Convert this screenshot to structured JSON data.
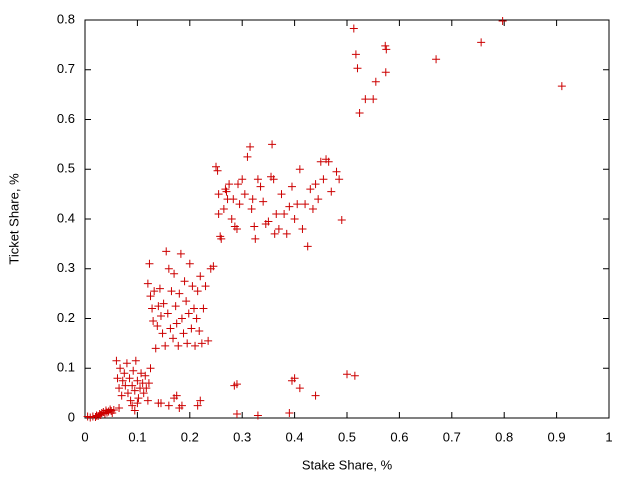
{
  "chart_data": {
    "type": "scatter",
    "xlabel": "Stake Share, %",
    "ylabel": "Ticket Share, %",
    "color": "#cc0000",
    "grid": false,
    "xlim": [
      0,
      1
    ],
    "xticks": [
      0,
      0.1,
      0.2,
      0.3,
      0.4,
      0.5,
      0.6,
      0.7,
      0.8,
      0.9,
      1
    ],
    "ylim": [
      0,
      0.8
    ],
    "yticks": [
      0,
      0.1,
      0.2,
      0.3,
      0.4,
      0.5,
      0.6,
      0.7,
      0.8
    ],
    "x": [
      0.513,
      0.517,
      0.52,
      0.524,
      0.535,
      0.55,
      0.555,
      0.573,
      0.575,
      0.574,
      0.67,
      0.756,
      0.797,
      0.91,
      0.25,
      0.253,
      0.255,
      0.255,
      0.258,
      0.26,
      0.265,
      0.268,
      0.27,
      0.272,
      0.275,
      0.28,
      0.283,
      0.286,
      0.29,
      0.292,
      0.295,
      0.3,
      0.305,
      0.31,
      0.315,
      0.318,
      0.32,
      0.323,
      0.325,
      0.33,
      0.335,
      0.34,
      0.345,
      0.35,
      0.355,
      0.357,
      0.36,
      0.362,
      0.365,
      0.37,
      0.375,
      0.38,
      0.385,
      0.39,
      0.395,
      0.4,
      0.405,
      0.41,
      0.415,
      0.42,
      0.425,
      0.43,
      0.435,
      0.44,
      0.445,
      0.45,
      0.455,
      0.46,
      0.465,
      0.47,
      0.48,
      0.485,
      0.49,
      0.12,
      0.123,
      0.125,
      0.128,
      0.13,
      0.132,
      0.135,
      0.138,
      0.14,
      0.143,
      0.145,
      0.148,
      0.15,
      0.153,
      0.155,
      0.158,
      0.16,
      0.163,
      0.165,
      0.168,
      0.17,
      0.173,
      0.175,
      0.178,
      0.18,
      0.183,
      0.185,
      0.188,
      0.19,
      0.193,
      0.195,
      0.198,
      0.2,
      0.203,
      0.205,
      0.208,
      0.21,
      0.213,
      0.215,
      0.218,
      0.22,
      0.223,
      0.226,
      0.23,
      0.235,
      0.24,
      0.245,
      0.06,
      0.062,
      0.065,
      0.067,
      0.07,
      0.072,
      0.075,
      0.077,
      0.08,
      0.082,
      0.085,
      0.087,
      0.09,
      0.092,
      0.095,
      0.097,
      0.1,
      0.102,
      0.105,
      0.107,
      0.11,
      0.112,
      0.115,
      0.117,
      0.12,
      0.122,
      0.125,
      0.09,
      0.095,
      0.1,
      0.065,
      0.015,
      0.02,
      0.022,
      0.025,
      0.028,
      0.03,
      0.032,
      0.035,
      0.038,
      0.04,
      0.042,
      0.045,
      0.048,
      0.05,
      0.052,
      0.055,
      0.01,
      0.005,
      0.14,
      0.145,
      0.16,
      0.17,
      0.175,
      0.18,
      0.185,
      0.215,
      0.22,
      0.285,
      0.29,
      0.29,
      0.33,
      0.39,
      0.395,
      0.4,
      0.41,
      0.44,
      0.5,
      0.515
    ],
    "values": [
      0.783,
      0.731,
      0.703,
      0.613,
      0.641,
      0.641,
      0.676,
      0.748,
      0.741,
      0.695,
      0.721,
      0.755,
      0.798,
      0.667,
      0.505,
      0.497,
      0.45,
      0.41,
      0.365,
      0.36,
      0.42,
      0.46,
      0.455,
      0.44,
      0.47,
      0.4,
      0.44,
      0.385,
      0.38,
      0.47,
      0.43,
      0.48,
      0.45,
      0.525,
      0.545,
      0.42,
      0.44,
      0.385,
      0.36,
      0.48,
      0.465,
      0.435,
      0.39,
      0.395,
      0.485,
      0.55,
      0.48,
      0.37,
      0.41,
      0.38,
      0.45,
      0.41,
      0.37,
      0.425,
      0.465,
      0.4,
      0.43,
      0.5,
      0.38,
      0.43,
      0.345,
      0.46,
      0.42,
      0.47,
      0.44,
      0.515,
      0.48,
      0.52,
      0.515,
      0.455,
      0.495,
      0.48,
      0.398,
      0.27,
      0.31,
      0.245,
      0.22,
      0.195,
      0.255,
      0.14,
      0.185,
      0.225,
      0.26,
      0.205,
      0.17,
      0.23,
      0.145,
      0.335,
      0.21,
      0.3,
      0.18,
      0.255,
      0.16,
      0.29,
      0.225,
      0.19,
      0.145,
      0.25,
      0.33,
      0.2,
      0.17,
      0.275,
      0.235,
      0.15,
      0.21,
      0.31,
      0.18,
      0.265,
      0.22,
      0.145,
      0.2,
      0.255,
      0.175,
      0.285,
      0.15,
      0.22,
      0.265,
      0.155,
      0.3,
      0.305,
      0.115,
      0.08,
      0.06,
      0.1,
      0.045,
      0.075,
      0.09,
      0.065,
      0.11,
      0.05,
      0.08,
      0.035,
      0.065,
      0.095,
      0.055,
      0.115,
      0.075,
      0.04,
      0.06,
      0.09,
      0.07,
      0.05,
      0.085,
      0.06,
      0.035,
      0.07,
      0.1,
      0.025,
      0.015,
      0.03,
      0.02,
      0.003,
      0.002,
      0.005,
      0.004,
      0.008,
      0.006,
      0.01,
      0.012,
      0.009,
      0.015,
      0.011,
      0.013,
      0.017,
      0.014,
      0.01,
      0.016,
      0.001,
      0.003,
      0.03,
      0.03,
      0.025,
      0.04,
      0.045,
      0.02,
      0.025,
      0.025,
      0.035,
      0.065,
      0.068,
      0.008,
      0.005,
      0.01,
      0.075,
      0.08,
      0.06,
      0.045,
      0.088,
      0.085
    ]
  }
}
